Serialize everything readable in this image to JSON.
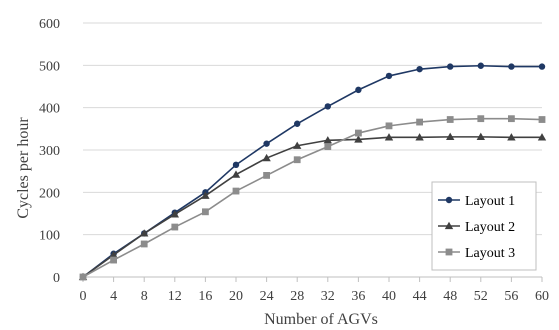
{
  "chart_data": {
    "type": "line",
    "title": "",
    "xlabel": "Number of AGVs",
    "ylabel": "Cycles per hour",
    "x": [
      0,
      4,
      8,
      12,
      16,
      20,
      24,
      28,
      32,
      36,
      40,
      44,
      48,
      52,
      56,
      60
    ],
    "xlim": [
      0,
      60
    ],
    "ylim": [
      0,
      600
    ],
    "x_ticks": [
      0,
      4,
      8,
      12,
      16,
      20,
      24,
      28,
      32,
      36,
      40,
      44,
      48,
      52,
      56,
      60
    ],
    "y_ticks": [
      0,
      100,
      200,
      300,
      400,
      500,
      600
    ],
    "grid": "horizontal",
    "legend_position": "bottom-right",
    "series": [
      {
        "name": "Layout 1",
        "color": "#1f3864",
        "marker": "circle",
        "values": [
          0,
          55,
          103,
          152,
          200,
          265,
          315,
          362,
          403,
          442,
          475,
          491,
          497,
          499,
          497,
          497
        ]
      },
      {
        "name": "Layout 2",
        "color": "#404040",
        "marker": "triangle",
        "values": [
          0,
          52,
          103,
          148,
          192,
          242,
          281,
          310,
          323,
          325,
          330,
          330,
          331,
          331,
          330,
          330
        ]
      },
      {
        "name": "Layout 3",
        "color": "#8c8c8c",
        "marker": "square",
        "values": [
          0,
          40,
          78,
          118,
          154,
          203,
          240,
          277,
          308,
          340,
          357,
          366,
          372,
          374,
          374,
          372
        ]
      }
    ]
  }
}
